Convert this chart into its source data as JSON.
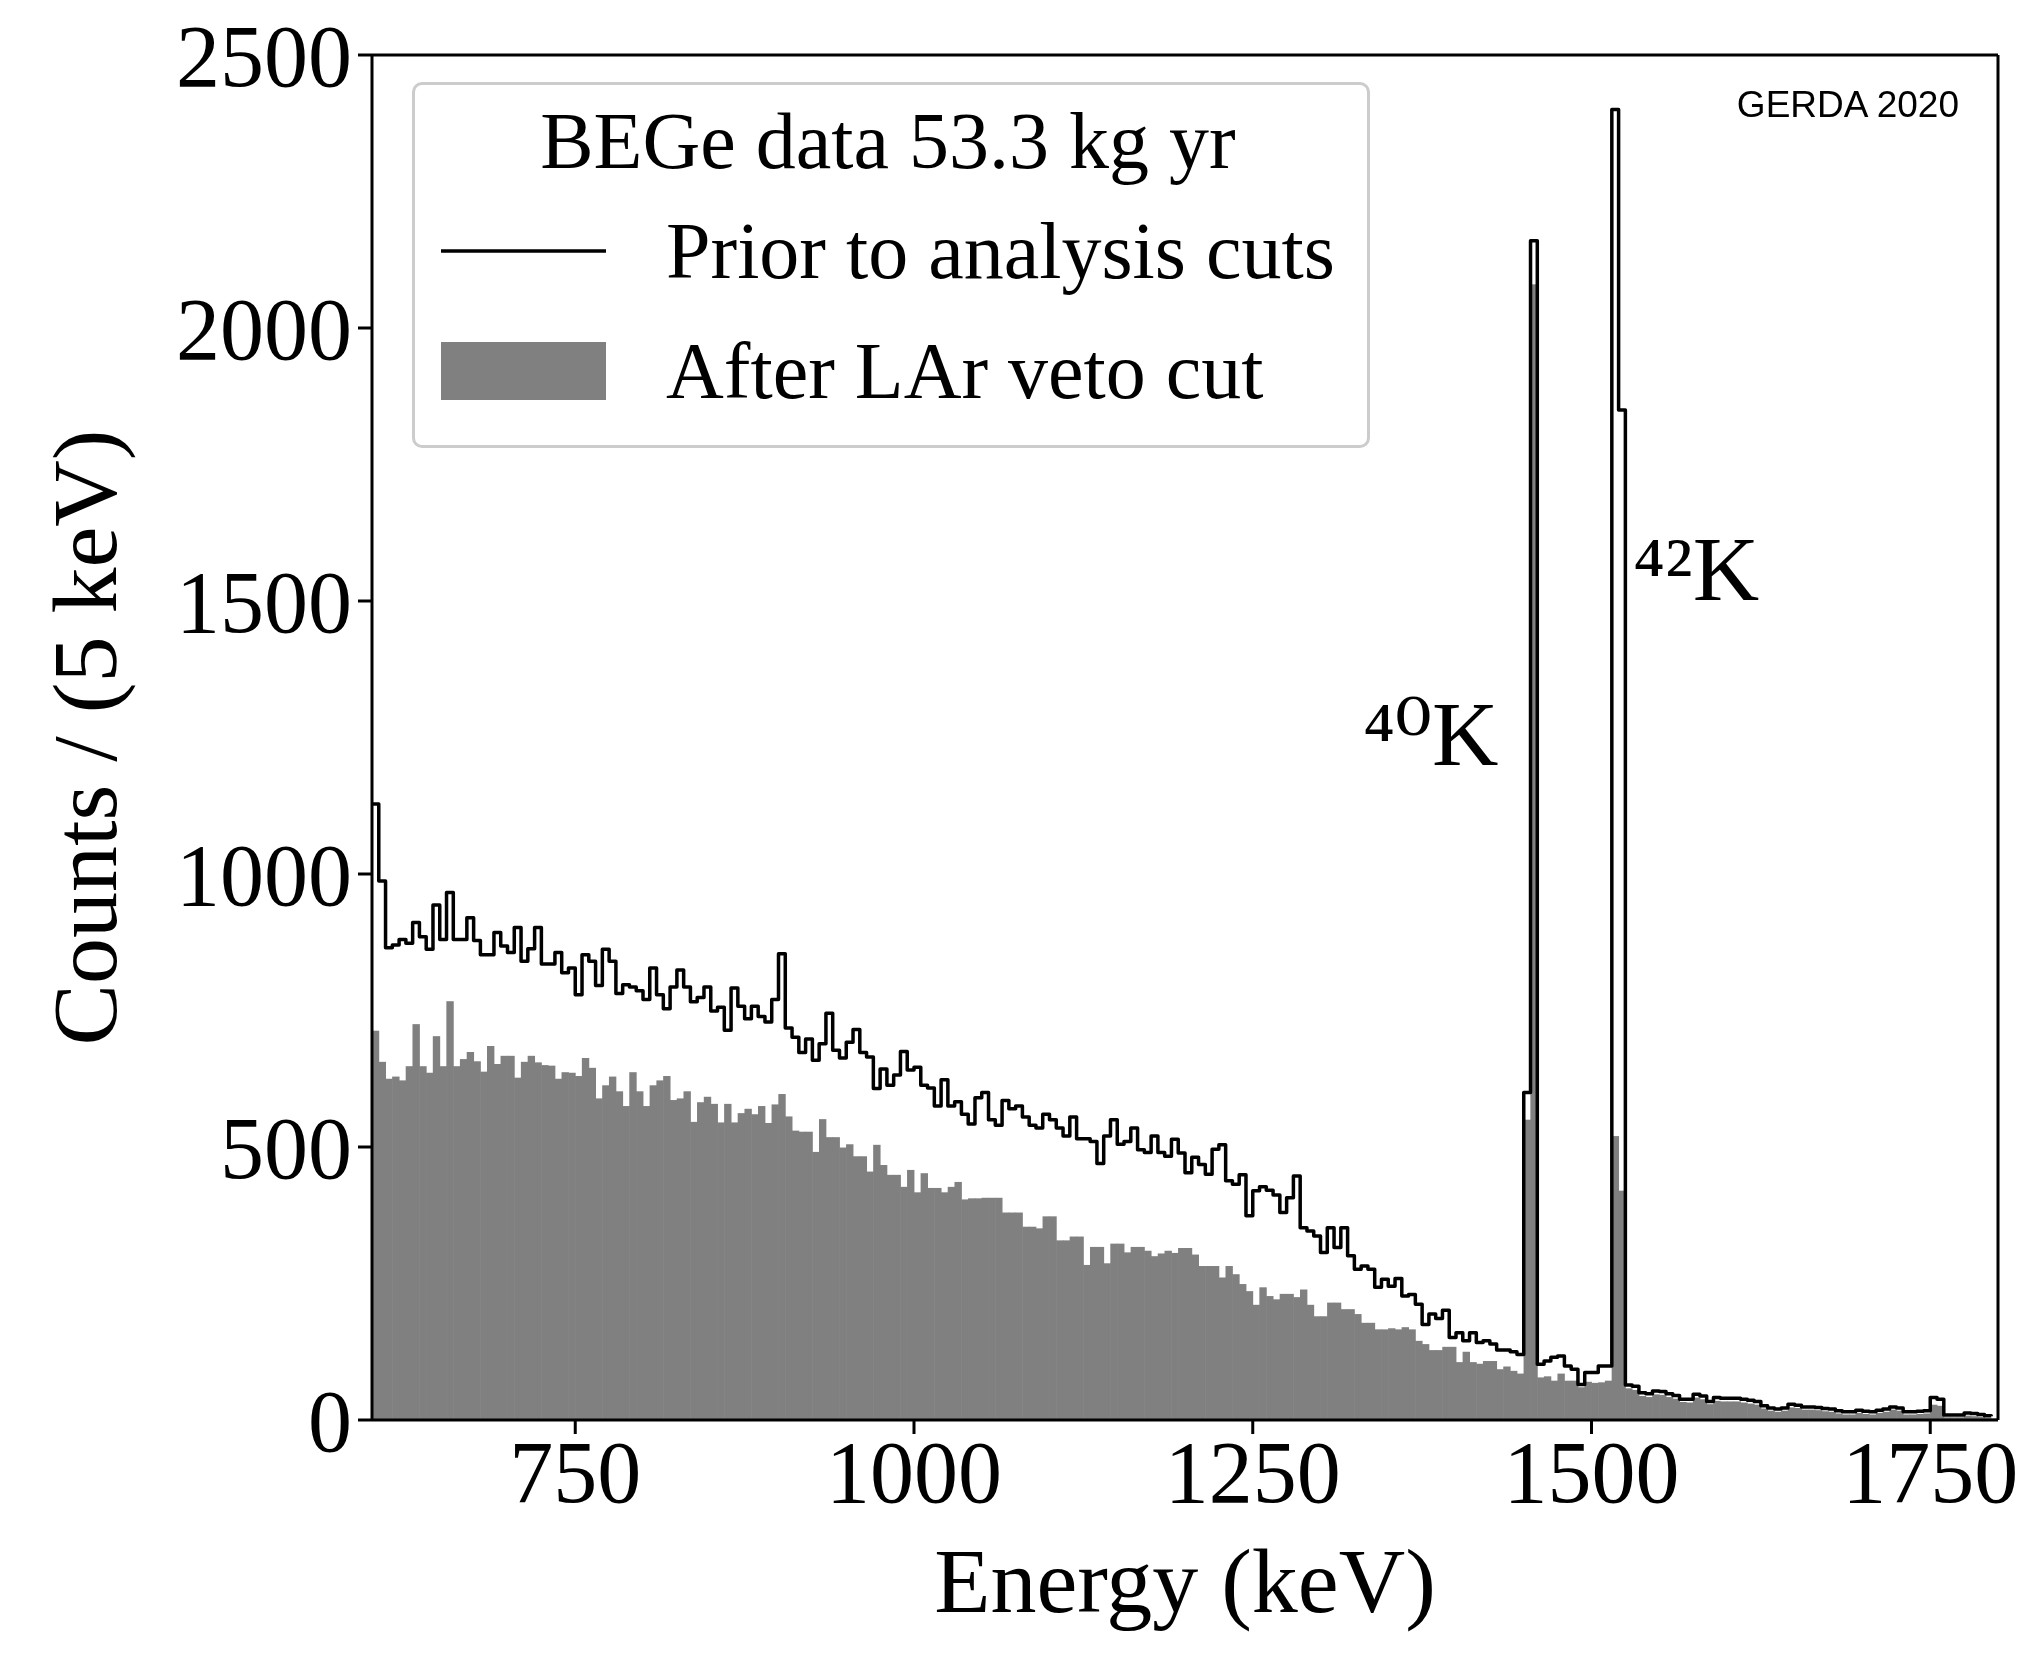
{
  "chart_data": {
    "type": "histogram",
    "xlabel": "Energy (keV)",
    "ylabel": "Counts / (5 keV)",
    "legend_title": "BEGe data 53.3 kg yr",
    "legend": "top left",
    "xlim": [
      600,
      1800
    ],
    "xticks": [
      750,
      1000,
      1250,
      1500,
      1750
    ],
    "ylim": [
      0,
      2500
    ],
    "yticks": [
      0,
      500,
      1000,
      1500,
      2000,
      2500
    ],
    "bins": [
      600,
      605,
      610,
      615,
      620,
      625,
      630,
      635,
      640,
      645,
      650,
      655,
      660,
      665,
      670,
      675,
      680,
      685,
      690,
      695,
      700,
      705,
      710,
      715,
      720,
      725,
      730,
      735,
      740,
      745,
      750,
      755,
      760,
      765,
      770,
      775,
      780,
      785,
      790,
      795,
      800,
      805,
      810,
      815,
      820,
      825,
      830,
      835,
      840,
      845,
      850,
      855,
      860,
      865,
      870,
      875,
      880,
      885,
      890,
      895,
      900,
      905,
      910,
      915,
      920,
      925,
      930,
      935,
      940,
      945,
      950,
      955,
      960,
      965,
      970,
      975,
      980,
      985,
      990,
      995,
      1000,
      1005,
      1010,
      1015,
      1020,
      1025,
      1030,
      1035,
      1040,
      1045,
      1050,
      1055,
      1060,
      1065,
      1070,
      1075,
      1080,
      1085,
      1090,
      1095,
      1100,
      1105,
      1110,
      1115,
      1120,
      1125,
      1130,
      1135,
      1140,
      1145,
      1150,
      1155,
      1160,
      1165,
      1170,
      1175,
      1180,
      1185,
      1190,
      1195,
      1200,
      1205,
      1210,
      1215,
      1220,
      1225,
      1230,
      1235,
      1240,
      1245,
      1250,
      1255,
      1260,
      1265,
      1270,
      1275,
      1280,
      1285,
      1290,
      1295,
      1300,
      1305,
      1310,
      1315,
      1320,
      1325,
      1330,
      1335,
      1340,
      1345,
      1350,
      1355,
      1360,
      1365,
      1370,
      1375,
      1380,
      1385,
      1390,
      1395,
      1400,
      1405,
      1410,
      1415,
      1420,
      1425,
      1430,
      1435,
      1440,
      1445,
      1450,
      1455,
      1460,
      1465,
      1470,
      1475,
      1480,
      1485,
      1490,
      1495,
      1500,
      1505,
      1510,
      1515,
      1520,
      1525,
      1530,
      1535,
      1540,
      1545,
      1550,
      1555,
      1560,
      1565,
      1570,
      1575,
      1580,
      1585,
      1590,
      1595,
      1600,
      1605,
      1610,
      1615,
      1620,
      1625,
      1630,
      1635,
      1640,
      1645,
      1650,
      1655,
      1660,
      1665,
      1670,
      1675,
      1680,
      1685,
      1690,
      1695,
      1700,
      1705,
      1710,
      1715,
      1720,
      1725,
      1730,
      1735,
      1740,
      1745,
      1750,
      1755,
      1760,
      1765,
      1770,
      1775,
      1780,
      1785,
      1790,
      1795,
      1800
    ],
    "series": [
      {
        "name": "Prior to analysis cuts",
        "type": "step",
        "color": "#000000",
        "x": [
          600,
          605,
          610,
          615,
          620,
          625,
          630,
          635,
          640,
          645,
          650,
          655,
          660,
          665,
          670,
          675,
          680,
          685,
          690,
          695,
          700,
          705,
          710,
          715,
          720,
          725,
          730,
          735,
          740,
          745,
          750,
          755,
          760,
          765,
          770,
          775,
          780,
          785,
          790,
          795,
          800,
          805,
          810,
          815,
          820,
          825,
          830,
          835,
          840,
          845,
          850,
          855,
          860,
          865,
          870,
          875,
          880,
          885,
          890,
          895,
          900,
          905,
          910,
          915,
          920,
          925,
          930,
          935,
          940,
          945,
          950,
          955,
          960,
          965,
          970,
          975,
          980,
          985,
          990,
          995,
          1000,
          1005,
          1010,
          1015,
          1020,
          1025,
          1030,
          1035,
          1040,
          1045,
          1050,
          1055,
          1060,
          1065,
          1070,
          1075,
          1080,
          1085,
          1090,
          1095,
          1100,
          1105,
          1110,
          1115,
          1120,
          1125,
          1130,
          1135,
          1140,
          1145,
          1150,
          1155,
          1160,
          1165,
          1170,
          1175,
          1180,
          1185,
          1190,
          1195,
          1200,
          1205,
          1210,
          1215,
          1220,
          1225,
          1230,
          1235,
          1240,
          1245,
          1250,
          1255,
          1260,
          1265,
          1270,
          1275,
          1280,
          1285,
          1290,
          1295,
          1300,
          1305,
          1310,
          1315,
          1320,
          1325,
          1330,
          1335,
          1340,
          1345,
          1350,
          1355,
          1360,
          1365,
          1370,
          1375,
          1380,
          1385,
          1390,
          1395,
          1400,
          1405,
          1410,
          1415,
          1420,
          1425,
          1430,
          1435,
          1440,
          1445,
          1450,
          1455,
          1460,
          1465,
          1470,
          1475,
          1480,
          1485,
          1490,
          1495,
          1500,
          1505,
          1510,
          1515,
          1520,
          1525,
          1530,
          1535,
          1540,
          1545,
          1550,
          1555,
          1560,
          1565,
          1570,
          1575,
          1580,
          1585,
          1590,
          1595,
          1600,
          1605,
          1610,
          1615,
          1620,
          1625,
          1630,
          1635,
          1640,
          1645,
          1650,
          1655,
          1660,
          1665,
          1670,
          1675,
          1680,
          1685,
          1690,
          1695,
          1700,
          1705,
          1710,
          1715,
          1720,
          1725,
          1730,
          1735,
          1740,
          1745,
          1750,
          1755,
          1760,
          1765,
          1770,
          1775,
          1780,
          1785,
          1790,
          1795
        ],
        "values": [
          1128,
          987,
          865,
          870,
          880,
          873,
          911,
          885,
          862,
          943,
          880,
          966,
          880,
          880,
          920,
          878,
          852,
          852,
          893,
          868,
          856,
          902,
          840,
          863,
          902,
          835,
          835,
          856,
          819,
          828,
          779,
          852,
          840,
          796,
          862,
          840,
          781,
          797,
          793,
          786,
          770,
          828,
          779,
          753,
          793,
          824,
          793,
          766,
          774,
          793,
          749,
          756,
          714,
          791,
          758,
          735,
          758,
          739,
          729,
          770,
          854,
          718,
          701,
          673,
          698,
          659,
          689,
          745,
          677,
          663,
          692,
          715,
          673,
          665,
          607,
          643,
          613,
          632,
          675,
          641,
          646,
          613,
          608,
          575,
          623,
          575,
          583,
          560,
          542,
          590,
          600,
          550,
          540,
          585,
          570,
          575,
          555,
          540,
          535,
          560,
          550,
          535,
          520,
          555,
          515,
          515,
          510,
          470,
          520,
          550,
          505,
          510,
          535,
          495,
          490,
          520,
          490,
          483,
          514,
          489,
          453,
          481,
          468,
          450,
          496,
          504,
          438,
          432,
          449,
          374,
          420,
          427,
          421,
          412,
          380,
          407,
          447,
          352,
          346,
          337,
          307,
          352,
          316,
          352,
          301,
          276,
          282,
          276,
          243,
          258,
          245,
          259,
          227,
          230,
          212,
          175,
          194,
          186,
          201,
          151,
          160,
          145,
          160,
          142,
          145,
          139,
          128,
          128,
          125,
          120,
          600,
          2160,
          102,
          108,
          115,
          117,
          99,
          93,
          65,
          87,
          87,
          99,
          99,
          2400,
          1850,
          64,
          62,
          50,
          48,
          53,
          52,
          48,
          45,
          38,
          38,
          47,
          44,
          34,
          41,
          40,
          40,
          40,
          38,
          36,
          34,
          26,
          22,
          20,
          22,
          29,
          27,
          24,
          24,
          23,
          21,
          20,
          17,
          15,
          15,
          18,
          16,
          15,
          18,
          20,
          24,
          22,
          15,
          15,
          16,
          17,
          41,
          38,
          9,
          9,
          9,
          13,
          12,
          10,
          8,
          7
        ]
      },
      {
        "name": "After LAr veto cut",
        "color": "#808080",
        "values": [
          713,
          656,
          625,
          629,
          622,
          648,
          725,
          648,
          636,
          703,
          648,
          767,
          648,
          661,
          674,
          657,
          638,
          685,
          652,
          667,
          667,
          627,
          656,
          667,
          655,
          650,
          649,
          625,
          637,
          636,
          630,
          663,
          645,
          589,
          613,
          629,
          602,
          575,
          637,
          602,
          575,
          613,
          622,
          630,
          586,
          589,
          602,
          546,
          582,
          592,
          579,
          545,
          579,
          545,
          562,
          570,
          560,
          575,
          544,
          578,
          597,
          556,
          530,
          528,
          528,
          491,
          551,
          518,
          518,
          499,
          505,
          483,
          483,
          455,
          504,
          467,
          449,
          449,
          427,
          458,
          417,
          452,
          425,
          425,
          417,
          427,
          436,
          404,
          406,
          406,
          407,
          407,
          407,
          380,
          380,
          380,
          354,
          354,
          351,
          373,
          373,
          329,
          329,
          336,
          336,
          284,
          317,
          317,
          287,
          323,
          323,
          307,
          317,
          317,
          310,
          300,
          305,
          310,
          306,
          315,
          315,
          303,
          282,
          282,
          282,
          261,
          282,
          267,
          249,
          236,
          211,
          243,
          227,
          221,
          231,
          231,
          225,
          239,
          211,
          190,
          190,
          215,
          215,
          203,
          203,
          194,
          178,
          178,
          166,
          166,
          168,
          166,
          170,
          166,
          145,
          139,
          128,
          128,
          134,
          134,
          106,
          125,
          106,
          103,
          108,
          108,
          93,
          98,
          90,
          85,
          550,
          2080,
          78,
          80,
          72,
          85,
          72,
          72,
          60,
          70,
          68,
          69,
          72,
          520,
          420,
          58,
          55,
          44,
          42,
          47,
          46,
          42,
          39,
          33,
          32,
          41,
          38,
          29,
          35,
          34,
          34,
          34,
          32,
          30,
          28,
          21,
          17,
          15,
          17,
          23,
          22,
          19,
          19,
          18,
          16,
          15,
          12,
          10,
          10,
          13,
          11,
          10,
          13,
          15,
          19,
          17,
          10,
          10,
          11,
          12,
          28,
          26,
          5,
          5,
          5,
          8,
          7,
          6,
          4,
          3
        ]
      }
    ],
    "annotations": [
      "⁴⁰K",
      "⁴²K",
      "GERDA 2020"
    ]
  }
}
